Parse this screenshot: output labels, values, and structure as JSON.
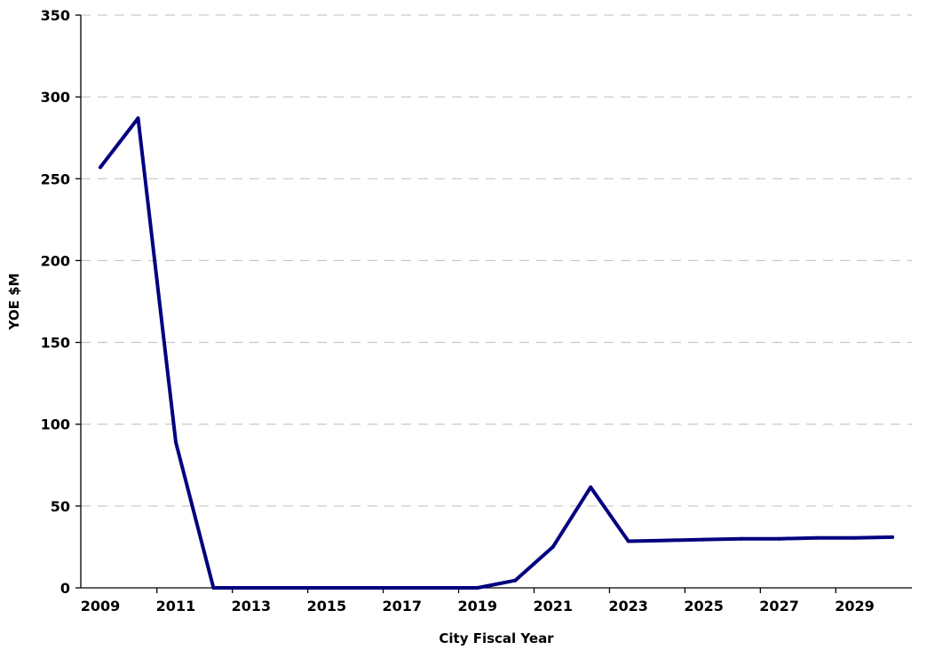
{
  "chart_data": {
    "type": "line",
    "title": "",
    "xlabel": "City Fiscal Year",
    "ylabel": "YOE $M",
    "ylim": [
      0,
      350
    ],
    "xlim": [
      2009,
      2030
    ],
    "y_ticks": [
      0,
      50,
      100,
      150,
      200,
      250,
      300,
      350
    ],
    "x_ticks": [
      2009,
      2011,
      2013,
      2015,
      2017,
      2019,
      2021,
      2023,
      2025,
      2027,
      2029
    ],
    "grid": true,
    "legend": "none",
    "series": [
      {
        "color": "#000080",
        "x": [
          2009,
          2010,
          2011,
          2012,
          2013,
          2014,
          2015,
          2016,
          2017,
          2018,
          2019,
          2020,
          2021,
          2022,
          2023,
          2024,
          2025,
          2026,
          2027,
          2028,
          2029,
          2030
        ],
        "y": [
          257,
          287,
          89,
          0,
          0,
          0,
          0,
          0,
          0,
          0,
          0,
          4.5,
          25,
          61.5,
          28.5,
          29,
          29.5,
          30,
          30,
          30.5,
          30.5,
          31
        ]
      }
    ]
  }
}
